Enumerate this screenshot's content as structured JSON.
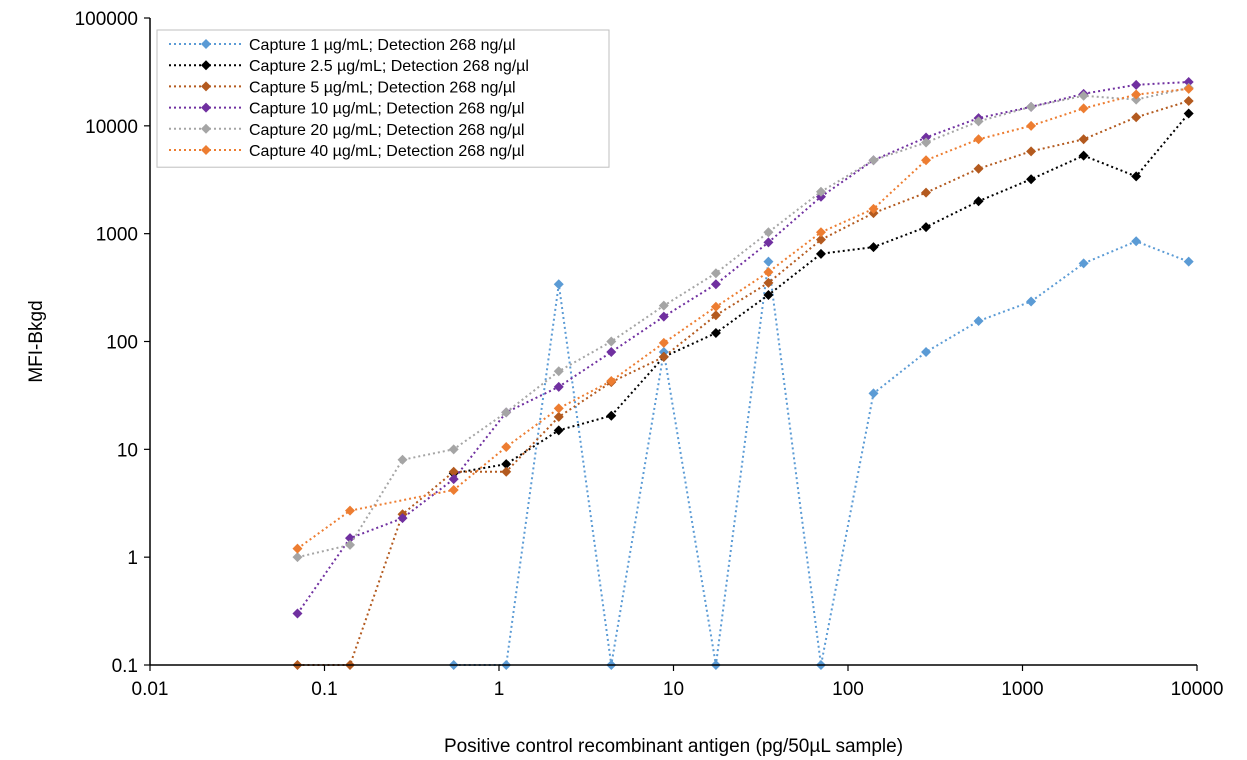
{
  "chart_data": {
    "type": "line",
    "title": "",
    "xlabel": "Positive control recombinant antigen (pg/50µL sample)",
    "ylabel": "MFI-Bkgd",
    "x_scale": "log",
    "y_scale": "log",
    "xlim": [
      0.01,
      10000
    ],
    "ylim": [
      0.1,
      100000
    ],
    "x_ticks": [
      "0.01",
      "0.1",
      "1",
      "10",
      "100",
      "1000",
      "10000"
    ],
    "y_ticks": [
      "0.1",
      "1",
      "10",
      "100",
      "1000",
      "10000",
      "100000"
    ],
    "grid": false,
    "legend_position": "top-left",
    "line_style": "dotted",
    "marker": "diamond",
    "series": [
      {
        "name": "Capture 1 µg/mL; Detection 268 ng/µl",
        "color": "#5b9bd5",
        "points": [
          [
            0.55,
            0.1
          ],
          [
            1.1,
            0.1
          ],
          [
            2.2,
            340
          ],
          [
            4.4,
            0.1
          ],
          [
            8.8,
            80
          ],
          [
            17.5,
            0.1
          ],
          [
            35,
            550
          ],
          [
            70,
            0.1
          ],
          [
            140,
            33
          ],
          [
            280,
            80
          ],
          [
            560,
            155
          ],
          [
            1120,
            235
          ],
          [
            2240,
            530
          ],
          [
            4480,
            850
          ],
          [
            8960,
            550
          ]
        ]
      },
      {
        "name": "Capture 2.5 µg/mL; Detection 268 ng/µl",
        "color": "#000000",
        "points": [
          [
            0.55,
            6
          ],
          [
            1.1,
            7.3
          ],
          [
            2.2,
            15
          ],
          [
            4.4,
            20.5
          ],
          [
            8.8,
            72
          ],
          [
            17.5,
            120
          ],
          [
            35,
            270
          ],
          [
            70,
            650
          ],
          [
            140,
            750
          ],
          [
            280,
            1150
          ],
          [
            560,
            2000
          ],
          [
            1120,
            3200
          ],
          [
            2240,
            5300
          ],
          [
            4480,
            3400
          ],
          [
            8960,
            13000
          ]
        ]
      },
      {
        "name": "Capture 5 µg/mL; Detection 268 ng/µl",
        "color": "#b35a1f",
        "points": [
          [
            0.07,
            0.1
          ],
          [
            0.14,
            0.1
          ],
          [
            0.28,
            2.5
          ],
          [
            0.55,
            6.2
          ],
          [
            1.1,
            6.2
          ],
          [
            2.2,
            20
          ],
          [
            4.4,
            42
          ],
          [
            8.8,
            72
          ],
          [
            17.5,
            175
          ],
          [
            35,
            350
          ],
          [
            70,
            880
          ],
          [
            140,
            1550
          ],
          [
            280,
            2400
          ],
          [
            560,
            4000
          ],
          [
            1120,
            5800
          ],
          [
            2240,
            7500
          ],
          [
            4480,
            12000
          ],
          [
            8960,
            17000
          ]
        ]
      },
      {
        "name": "Capture 10 µg/mL; Detection 268 ng/µl",
        "color": "#7030a0",
        "points": [
          [
            0.07,
            0.3
          ],
          [
            0.14,
            1.5
          ],
          [
            0.28,
            2.3
          ],
          [
            0.55,
            5.3
          ],
          [
            1.1,
            22
          ],
          [
            2.2,
            38
          ],
          [
            4.4,
            80
          ],
          [
            8.8,
            170
          ],
          [
            17.5,
            340
          ],
          [
            35,
            830
          ],
          [
            70,
            2200
          ],
          [
            140,
            4800
          ],
          [
            280,
            7800
          ],
          [
            560,
            11800
          ],
          [
            1120,
            15000
          ],
          [
            2240,
            19800
          ],
          [
            4480,
            24000
          ],
          [
            8960,
            25500
          ]
        ]
      },
      {
        "name": "Capture 20 µg/mL; Detection 268 ng/µl",
        "color": "#a5a5a5",
        "points": [
          [
            0.07,
            1.0
          ],
          [
            0.14,
            1.3
          ],
          [
            0.28,
            8
          ],
          [
            0.55,
            10
          ],
          [
            1.1,
            22
          ],
          [
            2.2,
            53
          ],
          [
            4.4,
            100
          ],
          [
            8.8,
            215
          ],
          [
            17.5,
            430
          ],
          [
            35,
            1030
          ],
          [
            70,
            2450
          ],
          [
            140,
            4800
          ],
          [
            280,
            7000
          ],
          [
            560,
            11000
          ],
          [
            1120,
            15000
          ],
          [
            2240,
            19000
          ],
          [
            4480,
            17500
          ],
          [
            8960,
            22500
          ]
        ]
      },
      {
        "name": "Capture 40 µg/mL; Detection 268 ng/µl",
        "color": "#ed7d31",
        "points": [
          [
            0.07,
            1.2
          ],
          [
            0.14,
            2.7
          ],
          [
            0.55,
            4.2
          ],
          [
            1.1,
            10.5
          ],
          [
            2.2,
            24
          ],
          [
            4.4,
            43
          ],
          [
            8.8,
            97
          ],
          [
            17.5,
            210
          ],
          [
            35,
            440
          ],
          [
            70,
            1030
          ],
          [
            140,
            1700
          ],
          [
            280,
            4800
          ],
          [
            560,
            7500
          ],
          [
            1120,
            10000
          ],
          [
            2240,
            14500
          ],
          [
            4480,
            19500
          ],
          [
            8960,
            22000
          ]
        ]
      }
    ]
  }
}
